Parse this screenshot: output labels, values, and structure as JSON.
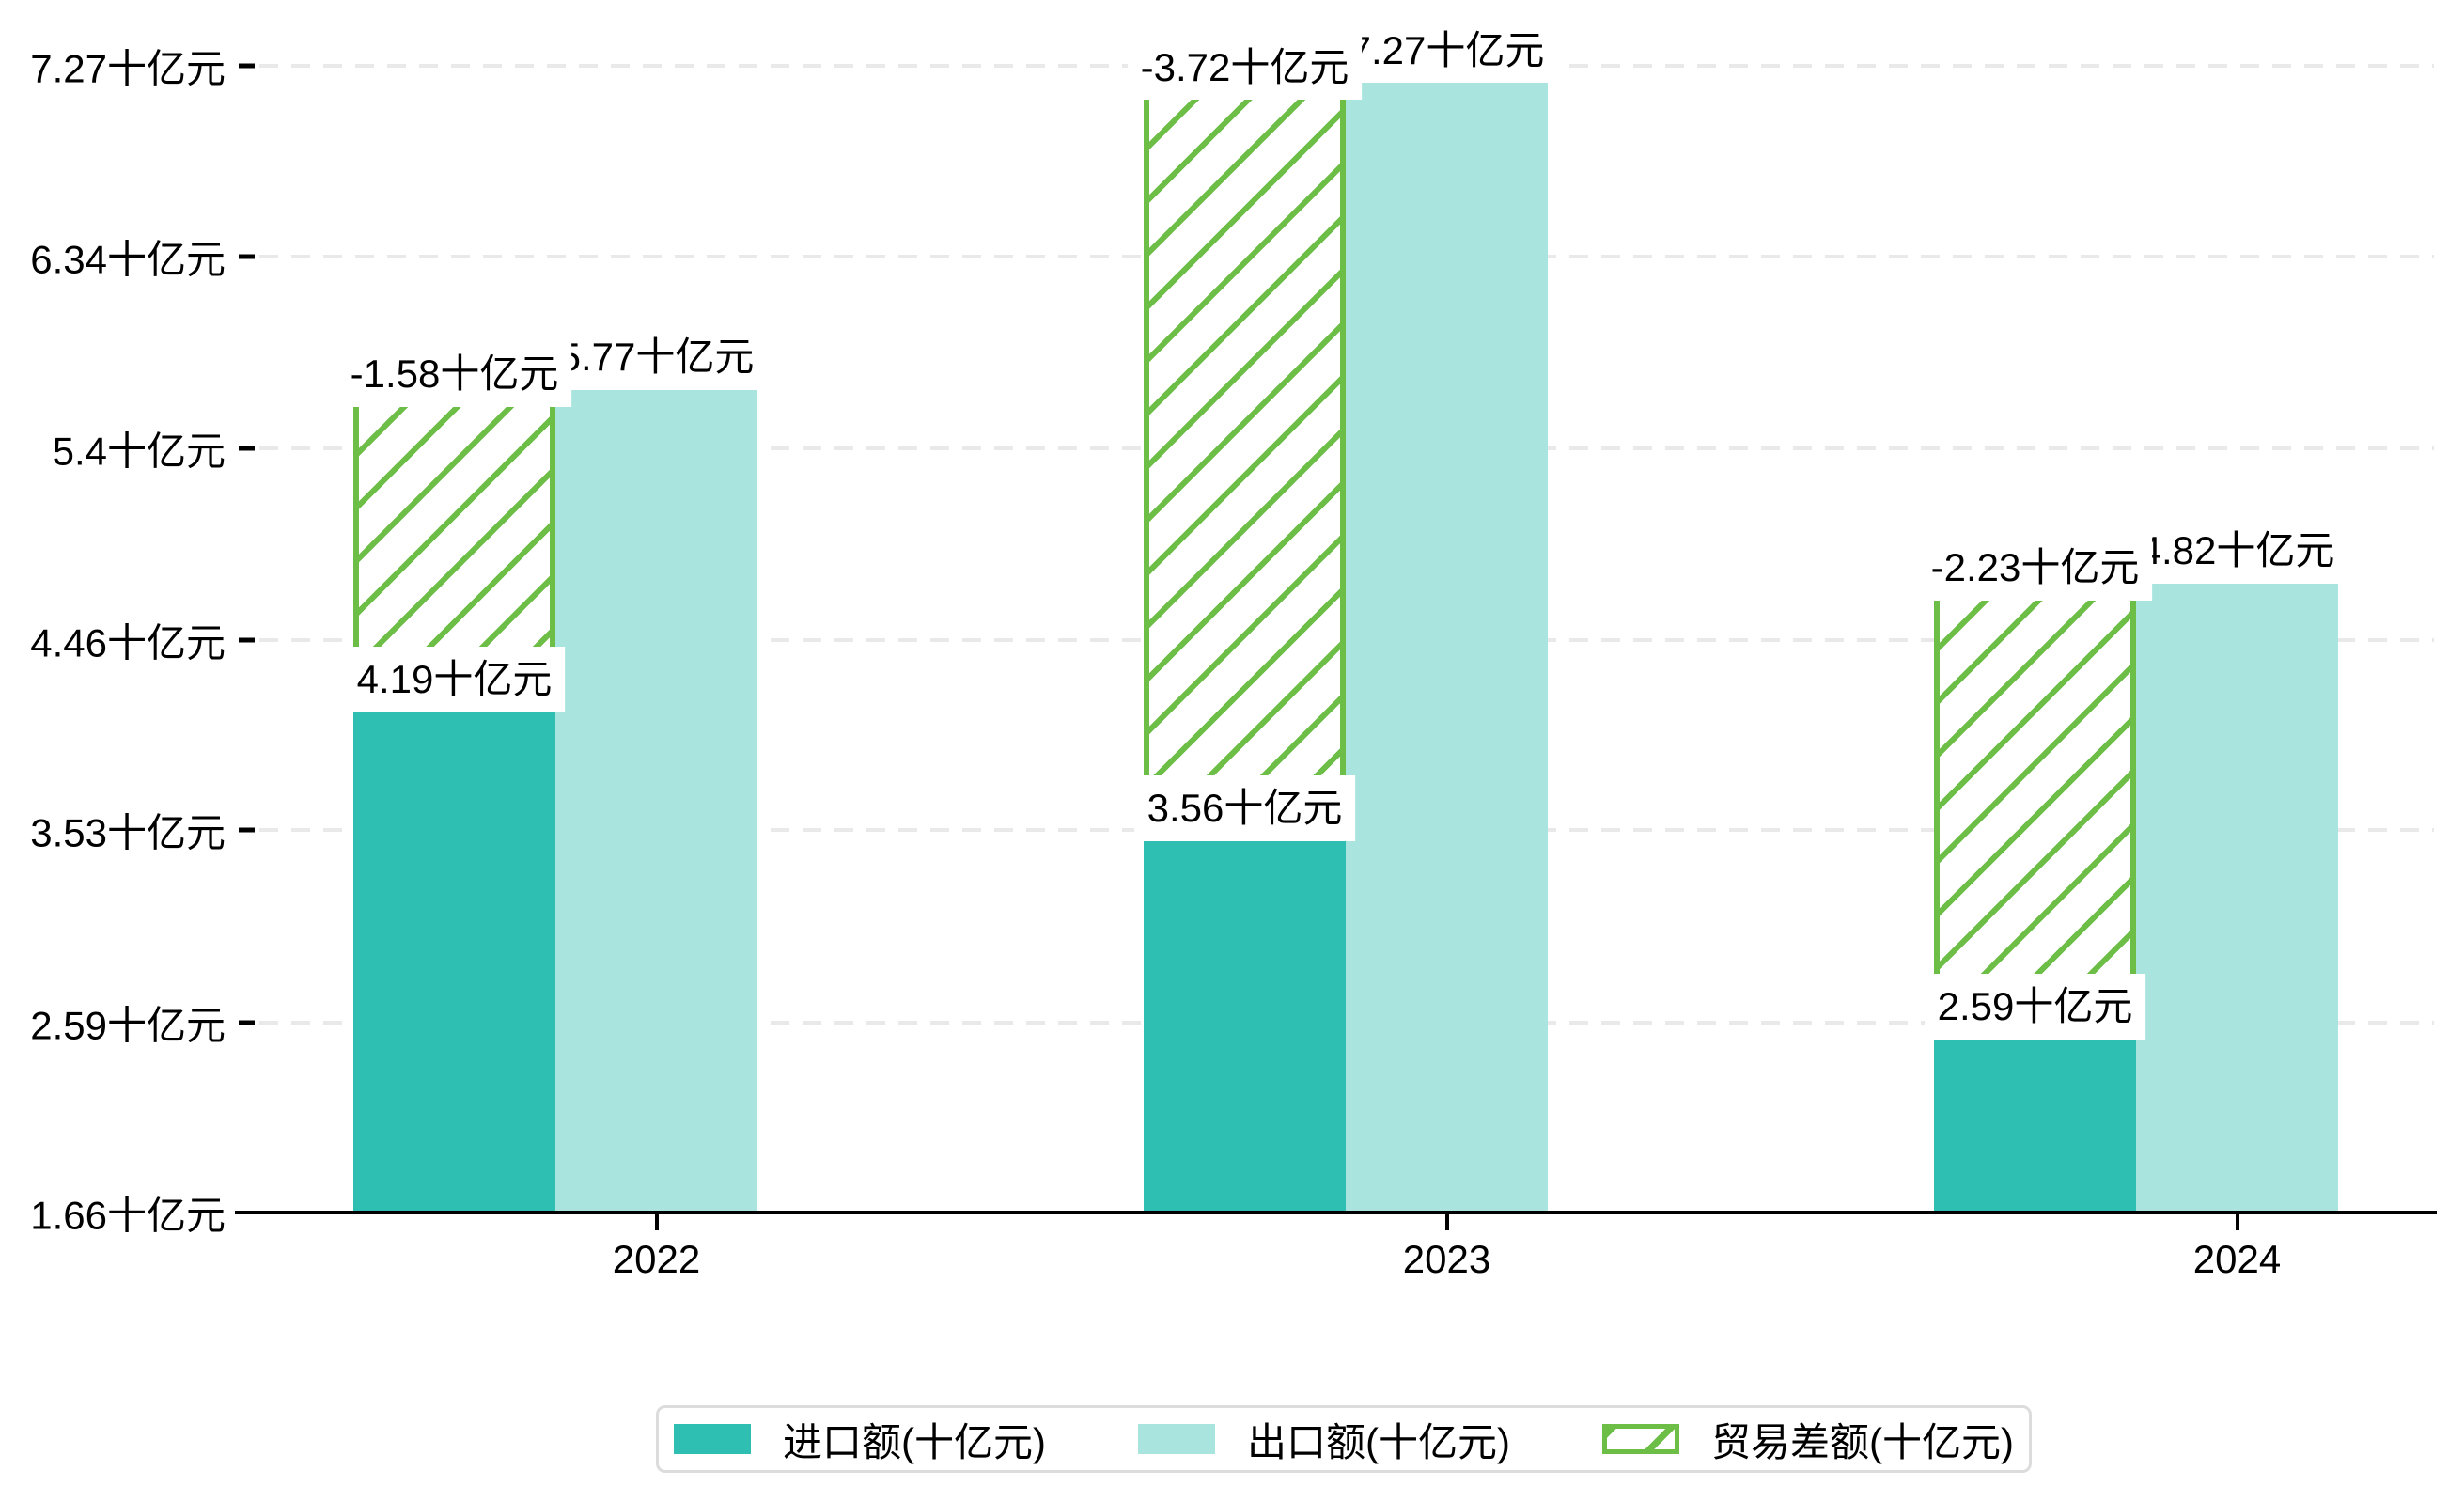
{
  "chart_data": {
    "type": "bar",
    "title": "",
    "categories": [
      "2022",
      "2023",
      "2024"
    ],
    "series": [
      {
        "name": "进口额(十亿元)",
        "key": "import",
        "color": "#2fbeb2",
        "values": [
          4.19,
          3.56,
          2.59
        ],
        "bar_labels": [
          "4.19十亿元",
          "3.56十亿元",
          "2.59十亿元"
        ]
      },
      {
        "name": "出口额(十亿元)",
        "key": "export",
        "color": "#a9e5de",
        "values": [
          5.77,
          7.27,
          4.82
        ],
        "bar_labels": [
          "5.77十亿元",
          "7.27十亿元",
          "4.82十亿元"
        ]
      },
      {
        "name": "贸易差额(十亿元)",
        "key": "trade-balance",
        "color": "#6cbe46",
        "pattern": "diagonal-hatch",
        "values": [
          -1.58,
          -3.72,
          -2.23
        ],
        "bar_labels": [
          "-1.58十亿元",
          "-3.72十亿元",
          "-2.23十亿元"
        ],
        "drawn_as": "hatched segment spanning from import-bar top to export-bar top"
      }
    ],
    "y_axis": {
      "unit": "十亿元",
      "tick_labels": [
        "7.27十亿元",
        "6.34十亿元",
        "5.4十亿元",
        "4.46十亿元",
        "3.53十亿元",
        "2.59十亿元",
        "1.66十亿元"
      ],
      "tick_values": [
        7.27,
        6.34,
        5.4,
        4.46,
        3.53,
        2.59,
        1.66
      ],
      "min": 1.66,
      "max": 7.27
    },
    "grid": {
      "horizontal": true,
      "style": "dashed",
      "color": "#e9e9e9"
    },
    "legend": {
      "position": "bottom"
    }
  },
  "colors": {
    "background": "#ffffff",
    "axis": "#000000",
    "text": "#000000",
    "gridline": "#e9e9e9",
    "legend_border": "#dcdcdc"
  }
}
